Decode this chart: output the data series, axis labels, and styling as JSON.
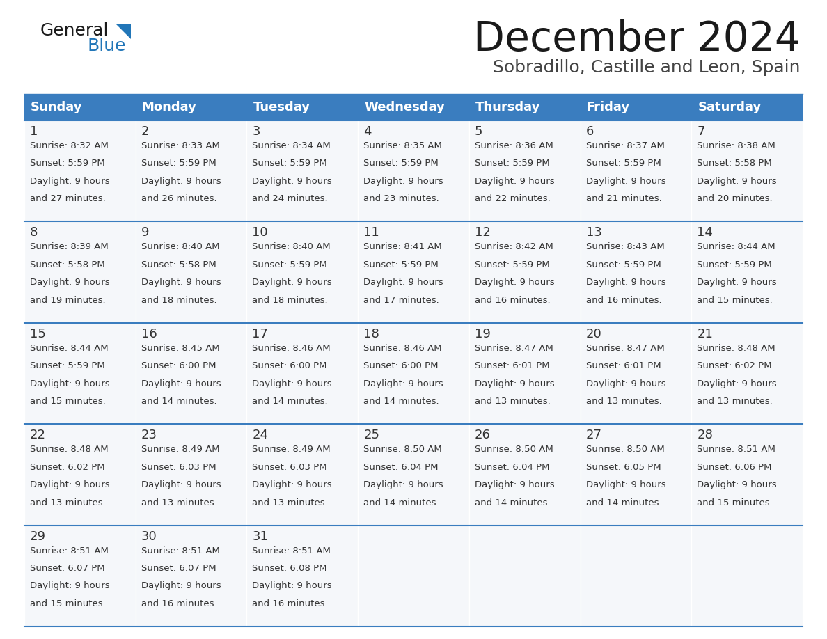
{
  "title": "December 2024",
  "subtitle": "Sobradillo, Castille and Leon, Spain",
  "days_of_week": [
    "Sunday",
    "Monday",
    "Tuesday",
    "Wednesday",
    "Thursday",
    "Friday",
    "Saturday"
  ],
  "header_bg": "#3a7dbf",
  "header_text_color": "#ffffff",
  "cell_bg_number": "#e8eef4",
  "cell_bg_text": "#f5f7fa",
  "divider_color": "#3a7dbf",
  "text_color": "#333333",
  "logo_general_color": "#1a1a1a",
  "logo_blue_color": "#2176b8",
  "weeks": [
    [
      {
        "day": 1,
        "sunrise": "8:32 AM",
        "sunset": "5:59 PM",
        "daylight": "9 hours",
        "minutes": "and 27 minutes."
      },
      {
        "day": 2,
        "sunrise": "8:33 AM",
        "sunset": "5:59 PM",
        "daylight": "9 hours",
        "minutes": "and 26 minutes."
      },
      {
        "day": 3,
        "sunrise": "8:34 AM",
        "sunset": "5:59 PM",
        "daylight": "9 hours",
        "minutes": "and 24 minutes."
      },
      {
        "day": 4,
        "sunrise": "8:35 AM",
        "sunset": "5:59 PM",
        "daylight": "9 hours",
        "minutes": "and 23 minutes."
      },
      {
        "day": 5,
        "sunrise": "8:36 AM",
        "sunset": "5:59 PM",
        "daylight": "9 hours",
        "minutes": "and 22 minutes."
      },
      {
        "day": 6,
        "sunrise": "8:37 AM",
        "sunset": "5:59 PM",
        "daylight": "9 hours",
        "minutes": "and 21 minutes."
      },
      {
        "day": 7,
        "sunrise": "8:38 AM",
        "sunset": "5:58 PM",
        "daylight": "9 hours",
        "minutes": "and 20 minutes."
      }
    ],
    [
      {
        "day": 8,
        "sunrise": "8:39 AM",
        "sunset": "5:58 PM",
        "daylight": "9 hours",
        "minutes": "and 19 minutes."
      },
      {
        "day": 9,
        "sunrise": "8:40 AM",
        "sunset": "5:58 PM",
        "daylight": "9 hours",
        "minutes": "and 18 minutes."
      },
      {
        "day": 10,
        "sunrise": "8:40 AM",
        "sunset": "5:59 PM",
        "daylight": "9 hours",
        "minutes": "and 18 minutes."
      },
      {
        "day": 11,
        "sunrise": "8:41 AM",
        "sunset": "5:59 PM",
        "daylight": "9 hours",
        "minutes": "and 17 minutes."
      },
      {
        "day": 12,
        "sunrise": "8:42 AM",
        "sunset": "5:59 PM",
        "daylight": "9 hours",
        "minutes": "and 16 minutes."
      },
      {
        "day": 13,
        "sunrise": "8:43 AM",
        "sunset": "5:59 PM",
        "daylight": "9 hours",
        "minutes": "and 16 minutes."
      },
      {
        "day": 14,
        "sunrise": "8:44 AM",
        "sunset": "5:59 PM",
        "daylight": "9 hours",
        "minutes": "and 15 minutes."
      }
    ],
    [
      {
        "day": 15,
        "sunrise": "8:44 AM",
        "sunset": "5:59 PM",
        "daylight": "9 hours",
        "minutes": "and 15 minutes."
      },
      {
        "day": 16,
        "sunrise": "8:45 AM",
        "sunset": "6:00 PM",
        "daylight": "9 hours",
        "minutes": "and 14 minutes."
      },
      {
        "day": 17,
        "sunrise": "8:46 AM",
        "sunset": "6:00 PM",
        "daylight": "9 hours",
        "minutes": "and 14 minutes."
      },
      {
        "day": 18,
        "sunrise": "8:46 AM",
        "sunset": "6:00 PM",
        "daylight": "9 hours",
        "minutes": "and 14 minutes."
      },
      {
        "day": 19,
        "sunrise": "8:47 AM",
        "sunset": "6:01 PM",
        "daylight": "9 hours",
        "minutes": "and 13 minutes."
      },
      {
        "day": 20,
        "sunrise": "8:47 AM",
        "sunset": "6:01 PM",
        "daylight": "9 hours",
        "minutes": "and 13 minutes."
      },
      {
        "day": 21,
        "sunrise": "8:48 AM",
        "sunset": "6:02 PM",
        "daylight": "9 hours",
        "minutes": "and 13 minutes."
      }
    ],
    [
      {
        "day": 22,
        "sunrise": "8:48 AM",
        "sunset": "6:02 PM",
        "daylight": "9 hours",
        "minutes": "and 13 minutes."
      },
      {
        "day": 23,
        "sunrise": "8:49 AM",
        "sunset": "6:03 PM",
        "daylight": "9 hours",
        "minutes": "and 13 minutes."
      },
      {
        "day": 24,
        "sunrise": "8:49 AM",
        "sunset": "6:03 PM",
        "daylight": "9 hours",
        "minutes": "and 13 minutes."
      },
      {
        "day": 25,
        "sunrise": "8:50 AM",
        "sunset": "6:04 PM",
        "daylight": "9 hours",
        "minutes": "and 14 minutes."
      },
      {
        "day": 26,
        "sunrise": "8:50 AM",
        "sunset": "6:04 PM",
        "daylight": "9 hours",
        "minutes": "and 14 minutes."
      },
      {
        "day": 27,
        "sunrise": "8:50 AM",
        "sunset": "6:05 PM",
        "daylight": "9 hours",
        "minutes": "and 14 minutes."
      },
      {
        "day": 28,
        "sunrise": "8:51 AM",
        "sunset": "6:06 PM",
        "daylight": "9 hours",
        "minutes": "and 15 minutes."
      }
    ],
    [
      {
        "day": 29,
        "sunrise": "8:51 AM",
        "sunset": "6:07 PM",
        "daylight": "9 hours",
        "minutes": "and 15 minutes."
      },
      {
        "day": 30,
        "sunrise": "8:51 AM",
        "sunset": "6:07 PM",
        "daylight": "9 hours",
        "minutes": "and 16 minutes."
      },
      {
        "day": 31,
        "sunrise": "8:51 AM",
        "sunset": "6:08 PM",
        "daylight": "9 hours",
        "minutes": "and 16 minutes."
      },
      null,
      null,
      null,
      null
    ]
  ]
}
